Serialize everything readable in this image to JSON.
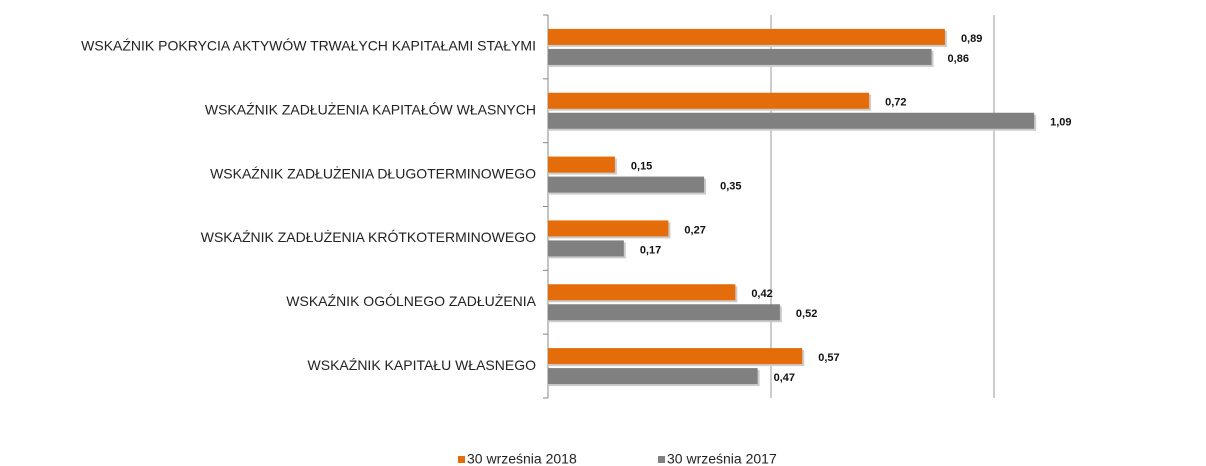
{
  "chart_data": {
    "type": "hbar",
    "categories": [
      "WSKAŹNIK POKRYCIA AKTYWÓW TRWAŁYCH KAPITAŁAMI STAŁYMI",
      "WSKAŹNIK ZADŁUŻENIA KAPITAŁÓW WŁASNYCH",
      "WSKAŹNIK ZADŁUŻENIA DŁUGOTERMINOWEGO",
      "WSKAŹNIK ZADŁUŻENIA KRÓTKOTERMINOWEGO",
      "WSKAŹNIK OGÓLNEGO ZADŁUŻENIA",
      "WSKAŹNIK KAPITAŁU WŁASNEGO"
    ],
    "series": [
      {
        "name": "30 września 2018",
        "color": "#e46c0a",
        "values": [
          0.89,
          0.72,
          0.15,
          0.27,
          0.42,
          0.57
        ],
        "value_labels": [
          "0,89",
          "0,72",
          "0,15",
          "0,27",
          "0,42",
          "0,57"
        ]
      },
      {
        "name": "30 września 2017",
        "color": "#808080",
        "values": [
          0.86,
          1.09,
          0.35,
          0.17,
          0.52,
          0.47
        ],
        "value_labels": [
          "0,86",
          "1,09",
          "0,35",
          "0,17",
          "0,52",
          "0,47"
        ]
      }
    ],
    "xlim": [
      0,
      1.2
    ],
    "xticks": [
      0,
      0.5,
      1
    ],
    "grid": true,
    "legend": "bottom"
  }
}
